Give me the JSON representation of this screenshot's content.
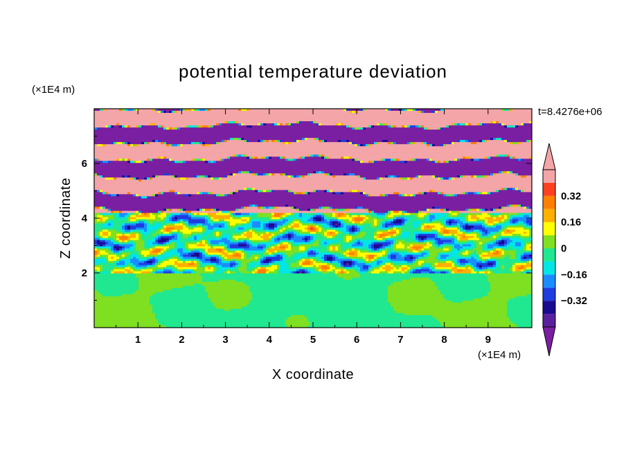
{
  "chart_data": {
    "type": "heatmap",
    "title": "potential temperature deviation",
    "xlabel": "X coordinate",
    "ylabel": "Z coordinate",
    "x_unit": "(×1E4 m)",
    "y_unit": "(×1E4 m)",
    "time_label": "t=8.4276e+06",
    "xlim": [
      0,
      10
    ],
    "ylim": [
      0,
      8
    ],
    "xticks": [
      1,
      2,
      3,
      4,
      5,
      6,
      7,
      8,
      9
    ],
    "yticks": [
      2,
      4,
      6
    ],
    "colorbar": {
      "levels": [
        -0.48,
        -0.4,
        -0.32,
        -0.24,
        -0.16,
        -0.08,
        0,
        0.08,
        0.16,
        0.24,
        0.32,
        0.4,
        0.48
      ],
      "tick_labels": [
        "0.32",
        "0.16",
        "0",
        "−0.16",
        "−0.32"
      ],
      "tick_values": [
        0.32,
        0.16,
        0,
        -0.16,
        -0.32
      ],
      "colors": [
        "#7b1fa2",
        "#5a1f9e",
        "#1a0a90",
        "#1e3ce0",
        "#1a8cff",
        "#00e6e6",
        "#20e890",
        "#7ee020",
        "#ffff00",
        "#ffb000",
        "#ff8000",
        "#ff4020",
        "#f3a5a8"
      ],
      "extend": "both"
    },
    "layers": [
      {
        "z": [
          0,
          1.95
        ],
        "pattern": "green-lime mix (near zero)"
      },
      {
        "z": [
          1.95,
          4.2
        ],
        "pattern": "turbulent cyan/green/yellow/red/blue mix"
      },
      {
        "z": [
          4.2,
          8
        ],
        "pattern": "alternating pink (positive) and purple (negative) bands"
      }
    ]
  },
  "colors": {
    "axis": "#000000",
    "background": "#ffffff"
  }
}
